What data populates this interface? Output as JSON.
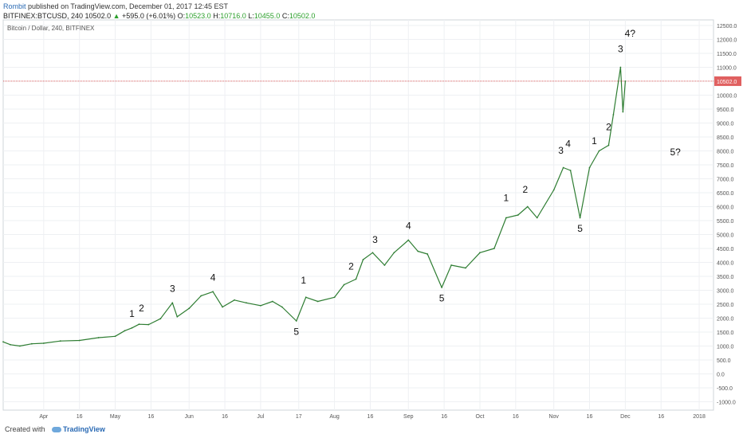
{
  "header": {
    "author": "Rombit",
    "published": "published on TradingView.com, December 01, 2017 12:45 EST",
    "symbol": "BITFINEX:BTCUSD, 240",
    "last": "10502.0",
    "arrow": "▲",
    "change": "+595.0 (+6.01%)",
    "o_label": "O:",
    "o_value": "10523.0",
    "h_label": "H:",
    "h_value": "10716.0",
    "l_label": "L:",
    "l_value": "10455.0",
    "c_label": "C:",
    "c_value": "10502.0"
  },
  "footer": {
    "created_with": "Created with",
    "brand": "TradingView"
  },
  "chart_data": {
    "type": "line",
    "title": "Bitcoin / Dollar, 240, BITFINEX",
    "xlabel": "",
    "ylabel": "",
    "ylim": [
      -1300,
      12700
    ],
    "y_ticks": [
      -1000,
      -500,
      0,
      500,
      1000,
      1500,
      2000,
      2500,
      3000,
      3500,
      4000,
      4500,
      5000,
      5500,
      6000,
      6500,
      7000,
      7500,
      8000,
      8500,
      9000,
      9500,
      10000,
      10500,
      11000,
      11500,
      12000,
      12500
    ],
    "y_tick_labels": [
      "-1000.0",
      "-500.0",
      "0.0",
      "500.0",
      "1000.0",
      "1500.0",
      "2000.0",
      "2500.0",
      "3000.0",
      "3500.0",
      "4000.0",
      "4500.0",
      "5000.0",
      "5500.0",
      "6000.0",
      "6500.0",
      "7000.0",
      "7500.0",
      "8000.0",
      "8500.0",
      "9000.0",
      "9500.0",
      "10000.0",
      "10500.0",
      "11000.0",
      "11500.0",
      "12000.0",
      "12500.0"
    ],
    "x_range": [
      "2017-03-15",
      "2018-01-07"
    ],
    "x_ticks": [
      {
        "date": "2017-04-01",
        "label": "Apr"
      },
      {
        "date": "2017-04-16",
        "label": "16"
      },
      {
        "date": "2017-05-01",
        "label": "May"
      },
      {
        "date": "2017-05-16",
        "label": "16"
      },
      {
        "date": "2017-06-01",
        "label": "Jun"
      },
      {
        "date": "2017-06-16",
        "label": "16"
      },
      {
        "date": "2017-07-01",
        "label": "Jul"
      },
      {
        "date": "2017-07-17",
        "label": "17"
      },
      {
        "date": "2017-08-01",
        "label": "Aug"
      },
      {
        "date": "2017-08-16",
        "label": "16"
      },
      {
        "date": "2017-09-01",
        "label": "Sep"
      },
      {
        "date": "2017-09-16",
        "label": "16"
      },
      {
        "date": "2017-10-01",
        "label": "Oct"
      },
      {
        "date": "2017-10-16",
        "label": "16"
      },
      {
        "date": "2017-11-01",
        "label": "Nov"
      },
      {
        "date": "2017-11-16",
        "label": "16"
      },
      {
        "date": "2017-12-01",
        "label": "Dec"
      },
      {
        "date": "2017-12-16",
        "label": "16"
      },
      {
        "date": "2018-01-01",
        "label": "2018"
      }
    ],
    "series": [
      {
        "points": [
          [
            "2017-03-15",
            1150
          ],
          [
            "2017-03-18",
            1050
          ],
          [
            "2017-03-22",
            1000
          ],
          [
            "2017-03-27",
            1080
          ],
          [
            "2017-04-01",
            1100
          ],
          [
            "2017-04-08",
            1180
          ],
          [
            "2017-04-16",
            1200
          ],
          [
            "2017-04-24",
            1300
          ],
          [
            "2017-05-01",
            1350
          ],
          [
            "2017-05-05",
            1550
          ],
          [
            "2017-05-08",
            1650
          ],
          [
            "2017-05-11",
            1780
          ],
          [
            "2017-05-15",
            1770
          ],
          [
            "2017-05-20",
            1980
          ],
          [
            "2017-05-25",
            2550
          ],
          [
            "2017-05-27",
            2050
          ],
          [
            "2017-06-01",
            2350
          ],
          [
            "2017-06-06",
            2800
          ],
          [
            "2017-06-11",
            2950
          ],
          [
            "2017-06-15",
            2400
          ],
          [
            "2017-06-20",
            2650
          ],
          [
            "2017-06-25",
            2550
          ],
          [
            "2017-07-01",
            2450
          ],
          [
            "2017-07-06",
            2600
          ],
          [
            "2017-07-10",
            2400
          ],
          [
            "2017-07-16",
            1900
          ],
          [
            "2017-07-20",
            2750
          ],
          [
            "2017-07-25",
            2600
          ],
          [
            "2017-08-01",
            2750
          ],
          [
            "2017-08-05",
            3200
          ],
          [
            "2017-08-10",
            3400
          ],
          [
            "2017-08-13",
            4100
          ],
          [
            "2017-08-17",
            4350
          ],
          [
            "2017-08-22",
            3900
          ],
          [
            "2017-08-26",
            4350
          ],
          [
            "2017-09-01",
            4800
          ],
          [
            "2017-09-05",
            4400
          ],
          [
            "2017-09-09",
            4300
          ],
          [
            "2017-09-15",
            3100
          ],
          [
            "2017-09-19",
            3900
          ],
          [
            "2017-09-25",
            3800
          ],
          [
            "2017-10-01",
            4350
          ],
          [
            "2017-10-07",
            4500
          ],
          [
            "2017-10-12",
            5600
          ],
          [
            "2017-10-17",
            5700
          ],
          [
            "2017-10-21",
            6000
          ],
          [
            "2017-10-25",
            5600
          ],
          [
            "2017-11-01",
            6600
          ],
          [
            "2017-11-05",
            7400
          ],
          [
            "2017-11-08",
            7300
          ],
          [
            "2017-11-12",
            5600
          ],
          [
            "2017-11-16",
            7400
          ],
          [
            "2017-11-20",
            8000
          ],
          [
            "2017-11-24",
            8200
          ],
          [
            "2017-11-26",
            9300
          ],
          [
            "2017-11-29",
            11000
          ],
          [
            "2017-11-30",
            9400
          ],
          [
            "2017-12-01",
            10502
          ]
        ]
      }
    ],
    "current_price": 10502.0,
    "current_price_label": "10502.0",
    "current_price_color": "#e06060",
    "line_color": "#2e7d32",
    "grid": true,
    "annotations": [
      {
        "text": "1",
        "date": "2017-05-08",
        "y": 2050
      },
      {
        "text": "2",
        "date": "2017-05-12",
        "y": 2250
      },
      {
        "text": "3",
        "date": "2017-05-25",
        "y": 2950
      },
      {
        "text": "4",
        "date": "2017-06-11",
        "y": 3350
      },
      {
        "text": "5",
        "date": "2017-07-16",
        "y": 1400
      },
      {
        "text": "1",
        "date": "2017-07-19",
        "y": 3250
      },
      {
        "text": "2",
        "date": "2017-08-08",
        "y": 3750
      },
      {
        "text": "3",
        "date": "2017-08-18",
        "y": 4700
      },
      {
        "text": "4",
        "date": "2017-09-01",
        "y": 5200
      },
      {
        "text": "5",
        "date": "2017-09-15",
        "y": 2600
      },
      {
        "text": "1",
        "date": "2017-10-12",
        "y": 6200
      },
      {
        "text": "2",
        "date": "2017-10-20",
        "y": 6500
      },
      {
        "text": "3",
        "date": "2017-11-04",
        "y": 7900
      },
      {
        "text": "4",
        "date": "2017-11-07",
        "y": 8150
      },
      {
        "text": "5",
        "date": "2017-11-12",
        "y": 5100
      },
      {
        "text": "1",
        "date": "2017-11-18",
        "y": 8250
      },
      {
        "text": "2",
        "date": "2017-11-24",
        "y": 8750
      },
      {
        "text": "3",
        "date": "2017-11-29",
        "y": 11550
      },
      {
        "text": "4?",
        "date": "2017-12-03",
        "y": 12100
      },
      {
        "text": "5?",
        "date": "2017-12-22",
        "y": 7850
      }
    ]
  }
}
